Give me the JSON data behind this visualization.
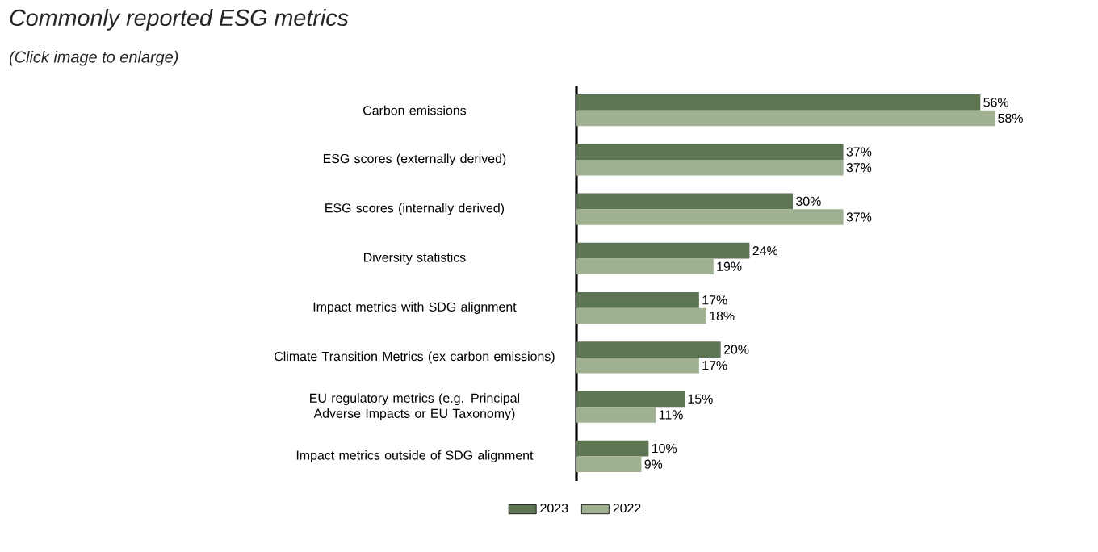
{
  "chart_data": {
    "type": "bar",
    "orientation": "horizontal",
    "title": "Commonly reported ESG metrics",
    "subtitle": "(Click image to enlarge)",
    "categories": [
      "Carbon emissions",
      "ESG scores (externally derived)",
      "ESG scores (internally derived)",
      "Diversity statistics",
      "Impact metrics with SDG alignment",
      "Climate Transition Metrics (ex carbon emissions)",
      "EU regulatory metrics (e.g. Principal Adverse Impacts or EU Taxonomy)",
      "Impact metrics outside of SDG alignment"
    ],
    "series": [
      {
        "name": "2023",
        "color": "#5e7553",
        "values": [
          56,
          37,
          30,
          24,
          17,
          20,
          15,
          10
        ],
        "value_labels": [
          "56%",
          "37%",
          "30%",
          "24%",
          "17%",
          "20%",
          "15%",
          "10%"
        ]
      },
      {
        "name": "2022",
        "color": "#9fb190",
        "values": [
          58,
          37,
          37,
          19,
          18,
          17,
          11,
          9
        ],
        "value_labels": [
          "58%",
          "37%",
          "37%",
          "19%",
          "18%",
          "17%",
          "11%",
          "9%"
        ]
      }
    ],
    "legend": "bottom"
  }
}
